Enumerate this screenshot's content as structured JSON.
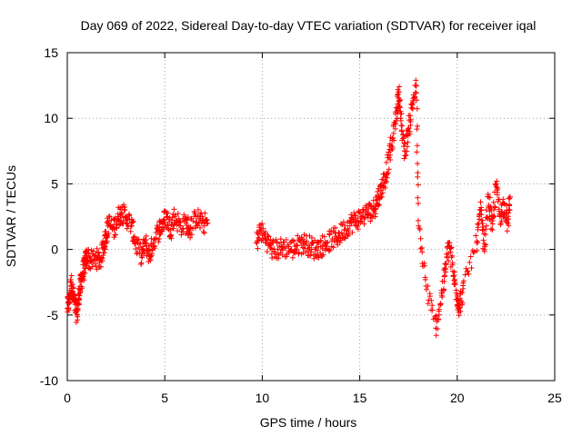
{
  "chart_data": {
    "type": "scatter",
    "title": "Day 069 of 2022, Sidereal Day-to-day VTEC variation (SDTVAR) for receiver iqal",
    "xlabel": "GPS time / hours",
    "ylabel": "SDTVAR / TECUs",
    "xlim": [
      0,
      25
    ],
    "ylim": [
      -10,
      15
    ],
    "xticks": [
      0,
      5,
      10,
      15,
      20,
      25
    ],
    "yticks": [
      -10,
      -5,
      0,
      5,
      10,
      15
    ],
    "grid": true,
    "marker": "+",
    "color": "#ff0000",
    "series": [
      {
        "name": "SDTVAR",
        "anchors": [
          [
            0.0,
            -4.5
          ],
          [
            0.1,
            -3.8
          ],
          [
            0.2,
            -2.5
          ],
          [
            0.3,
            -3.5
          ],
          [
            0.4,
            -4.2
          ],
          [
            0.5,
            -5.0
          ],
          [
            0.6,
            -3.5
          ],
          [
            0.7,
            -2.5
          ],
          [
            0.8,
            -1.8
          ],
          [
            0.9,
            -1.2
          ],
          [
            1.0,
            -0.5
          ],
          [
            1.2,
            -0.9
          ],
          [
            1.5,
            -0.7
          ],
          [
            1.7,
            -0.8
          ],
          [
            1.9,
            0.5
          ],
          [
            2.0,
            1.0
          ],
          [
            2.1,
            2.0
          ],
          [
            2.4,
            1.5
          ],
          [
            2.6,
            2.5
          ],
          [
            2.8,
            2.8
          ],
          [
            3.0,
            2.5
          ],
          [
            3.3,
            1.8
          ],
          [
            3.5,
            0.5
          ],
          [
            3.8,
            -0.5
          ],
          [
            4.0,
            0.5
          ],
          [
            4.2,
            -0.5
          ],
          [
            4.4,
            0.5
          ],
          [
            4.7,
            1.5
          ],
          [
            4.9,
            2.0
          ],
          [
            5.1,
            2.5
          ],
          [
            5.3,
            1.5
          ],
          [
            5.5,
            2.5
          ],
          [
            5.8,
            1.8
          ],
          [
            6.1,
            2.0
          ],
          [
            6.3,
            1.5
          ],
          [
            6.6,
            2.5
          ],
          [
            6.9,
            2.0
          ],
          [
            7.2,
            2.0
          ],
          [
            9.7,
            0.5
          ],
          [
            9.9,
            1.5
          ],
          [
            10.2,
            0.8
          ],
          [
            10.5,
            0.0
          ],
          [
            10.8,
            0.0
          ],
          [
            11.1,
            0.2
          ],
          [
            11.5,
            0.0
          ],
          [
            11.8,
            0.3
          ],
          [
            12.1,
            0.5
          ],
          [
            12.4,
            0.3
          ],
          [
            12.7,
            0.0
          ],
          [
            13.0,
            0.2
          ],
          [
            13.3,
            0.5
          ],
          [
            13.6,
            0.8
          ],
          [
            13.9,
            1.0
          ],
          [
            14.2,
            1.5
          ],
          [
            14.5,
            2.0
          ],
          [
            14.8,
            2.2
          ],
          [
            15.1,
            2.5
          ],
          [
            15.4,
            2.8
          ],
          [
            15.7,
            3.0
          ],
          [
            15.9,
            3.8
          ],
          [
            16.1,
            4.5
          ],
          [
            16.3,
            5.5
          ],
          [
            16.5,
            7.0
          ],
          [
            16.7,
            8.5
          ],
          [
            16.9,
            10.5
          ],
          [
            17.0,
            12.0
          ],
          [
            17.1,
            10.0
          ],
          [
            17.3,
            7.5
          ],
          [
            17.5,
            9.0
          ],
          [
            17.7,
            11.0
          ],
          [
            17.9,
            12.5
          ],
          [
            18.0,
            2.2
          ],
          [
            18.4,
            -2.8
          ],
          [
            18.9,
            -6.0
          ],
          [
            19.2,
            -3.5
          ],
          [
            19.4,
            -1.5
          ],
          [
            19.6,
            0.5
          ],
          [
            19.8,
            -2.0
          ],
          [
            20.0,
            -3.5
          ],
          [
            20.1,
            -4.5
          ],
          [
            20.3,
            -3.0
          ],
          [
            21.0,
            0.5
          ],
          [
            21.2,
            3.0
          ],
          [
            21.4,
            0.0
          ],
          [
            21.6,
            4.0
          ],
          [
            21.8,
            1.5
          ],
          [
            22.0,
            5.0
          ],
          [
            22.2,
            2.5
          ],
          [
            22.4,
            3.5
          ],
          [
            22.6,
            2.0
          ],
          [
            22.7,
            4.0
          ]
        ]
      }
    ]
  }
}
